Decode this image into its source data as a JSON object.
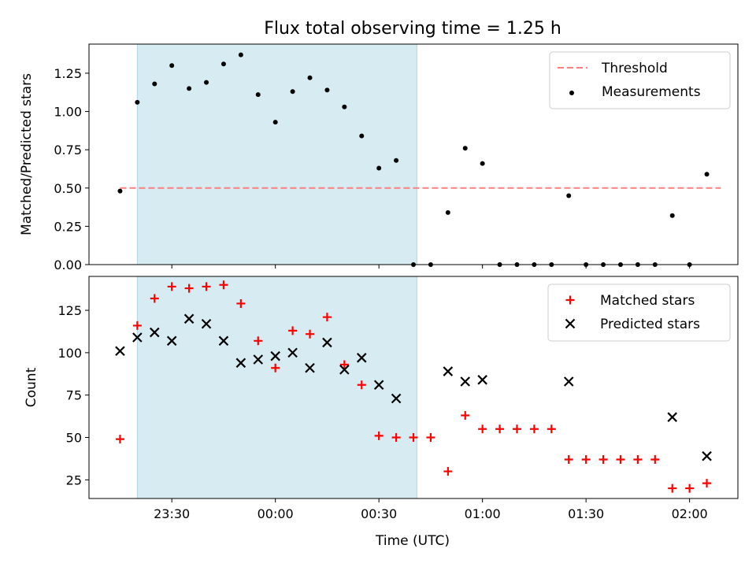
{
  "chart_data": [
    {
      "type": "scatter",
      "title": "Flux total observing time = 1.25 h",
      "xlabel": "",
      "ylabel": "Matched/Predicted stars",
      "ylim": [
        0,
        1.44
      ],
      "yticks": [
        0.0,
        0.25,
        0.5,
        0.75,
        1.0,
        1.25
      ],
      "ytick_labels": [
        "0.00",
        "0.25",
        "0.50",
        "0.75",
        "1.00",
        "1.25"
      ],
      "shaded_span": [
        "23:20",
        "00:41"
      ],
      "legend_position": "top-right",
      "threshold": {
        "name": "Threshold",
        "value": 0.5,
        "x_range": [
          "23:15",
          "02:09"
        ],
        "color": "#ff7f7f"
      },
      "series": [
        {
          "name": "Measurements",
          "marker": "dot",
          "color": "#000000",
          "points": [
            [
              "23:15",
              0.48
            ],
            [
              "23:20",
              1.06
            ],
            [
              "23:25",
              1.18
            ],
            [
              "23:30",
              1.3
            ],
            [
              "23:35",
              1.15
            ],
            [
              "23:40",
              1.19
            ],
            [
              "23:45",
              1.31
            ],
            [
              "23:50",
              1.37
            ],
            [
              "23:55",
              1.11
            ],
            [
              "00:00",
              0.93
            ],
            [
              "00:05",
              1.13
            ],
            [
              "00:10",
              1.22
            ],
            [
              "00:15",
              1.14
            ],
            [
              "00:20",
              1.03
            ],
            [
              "00:25",
              0.84
            ],
            [
              "00:30",
              0.63
            ],
            [
              "00:35",
              0.68
            ],
            [
              "00:40",
              0.0
            ],
            [
              "00:45",
              0.0
            ],
            [
              "00:50",
              0.34
            ],
            [
              "00:55",
              0.76
            ],
            [
              "01:00",
              0.66
            ],
            [
              "01:05",
              0.0
            ],
            [
              "01:10",
              0.0
            ],
            [
              "01:15",
              0.0
            ],
            [
              "01:20",
              0.0
            ],
            [
              "01:25",
              0.45
            ],
            [
              "01:30",
              0.0
            ],
            [
              "01:35",
              0.0
            ],
            [
              "01:40",
              0.0
            ],
            [
              "01:45",
              0.0
            ],
            [
              "01:50",
              0.0
            ],
            [
              "01:55",
              0.32
            ],
            [
              "02:00",
              0.0
            ],
            [
              "02:05",
              0.59
            ]
          ]
        }
      ]
    },
    {
      "type": "scatter",
      "title": "",
      "xlabel": "Time (UTC)",
      "ylabel": "Count",
      "ylim": [
        14,
        145
      ],
      "yticks": [
        25,
        50,
        75,
        100,
        125
      ],
      "ytick_labels": [
        "25",
        "50",
        "75",
        "100",
        "125"
      ],
      "xticks": [
        "23:30",
        "00:00",
        "00:30",
        "01:00",
        "01:30",
        "02:00"
      ],
      "xlim": [
        "23:06",
        "02:14"
      ],
      "shaded_span": [
        "23:20",
        "00:41"
      ],
      "legend_position": "top-right",
      "series": [
        {
          "name": "Matched stars",
          "marker": "plus",
          "color": "#ff0000",
          "points": [
            [
              "23:15",
              49
            ],
            [
              "23:20",
              116
            ],
            [
              "23:25",
              132
            ],
            [
              "23:30",
              139
            ],
            [
              "23:35",
              138
            ],
            [
              "23:40",
              139
            ],
            [
              "23:45",
              140
            ],
            [
              "23:50",
              129
            ],
            [
              "23:55",
              107
            ],
            [
              "00:00",
              91
            ],
            [
              "00:05",
              113
            ],
            [
              "00:10",
              111
            ],
            [
              "00:15",
              121
            ],
            [
              "00:20",
              93
            ],
            [
              "00:25",
              81
            ],
            [
              "00:30",
              51
            ],
            [
              "00:35",
              50
            ],
            [
              "00:40",
              50
            ],
            [
              "00:45",
              50
            ],
            [
              "00:50",
              30
            ],
            [
              "00:55",
              63
            ],
            [
              "01:00",
              55
            ],
            [
              "01:05",
              55
            ],
            [
              "01:10",
              55
            ],
            [
              "01:15",
              55
            ],
            [
              "01:20",
              55
            ],
            [
              "01:25",
              37
            ],
            [
              "01:30",
              37
            ],
            [
              "01:35",
              37
            ],
            [
              "01:40",
              37
            ],
            [
              "01:45",
              37
            ],
            [
              "01:50",
              37
            ],
            [
              "01:55",
              20
            ],
            [
              "02:00",
              20
            ],
            [
              "02:05",
              23
            ]
          ]
        },
        {
          "name": "Predicted stars",
          "marker": "x",
          "color": "#000000",
          "points": [
            [
              "23:15",
              101
            ],
            [
              "23:20",
              109
            ],
            [
              "23:25",
              112
            ],
            [
              "23:30",
              107
            ],
            [
              "23:35",
              120
            ],
            [
              "23:40",
              117
            ],
            [
              "23:45",
              107
            ],
            [
              "23:50",
              94
            ],
            [
              "23:55",
              96
            ],
            [
              "00:00",
              98
            ],
            [
              "00:05",
              100
            ],
            [
              "00:10",
              91
            ],
            [
              "00:15",
              106
            ],
            [
              "00:20",
              90
            ],
            [
              "00:25",
              97
            ],
            [
              "00:30",
              81
            ],
            [
              "00:35",
              73
            ],
            [
              "00:50",
              89
            ],
            [
              "00:55",
              83
            ],
            [
              "01:00",
              84
            ],
            [
              "01:25",
              83
            ],
            [
              "01:55",
              62
            ],
            [
              "02:05",
              39
            ]
          ]
        }
      ]
    }
  ]
}
